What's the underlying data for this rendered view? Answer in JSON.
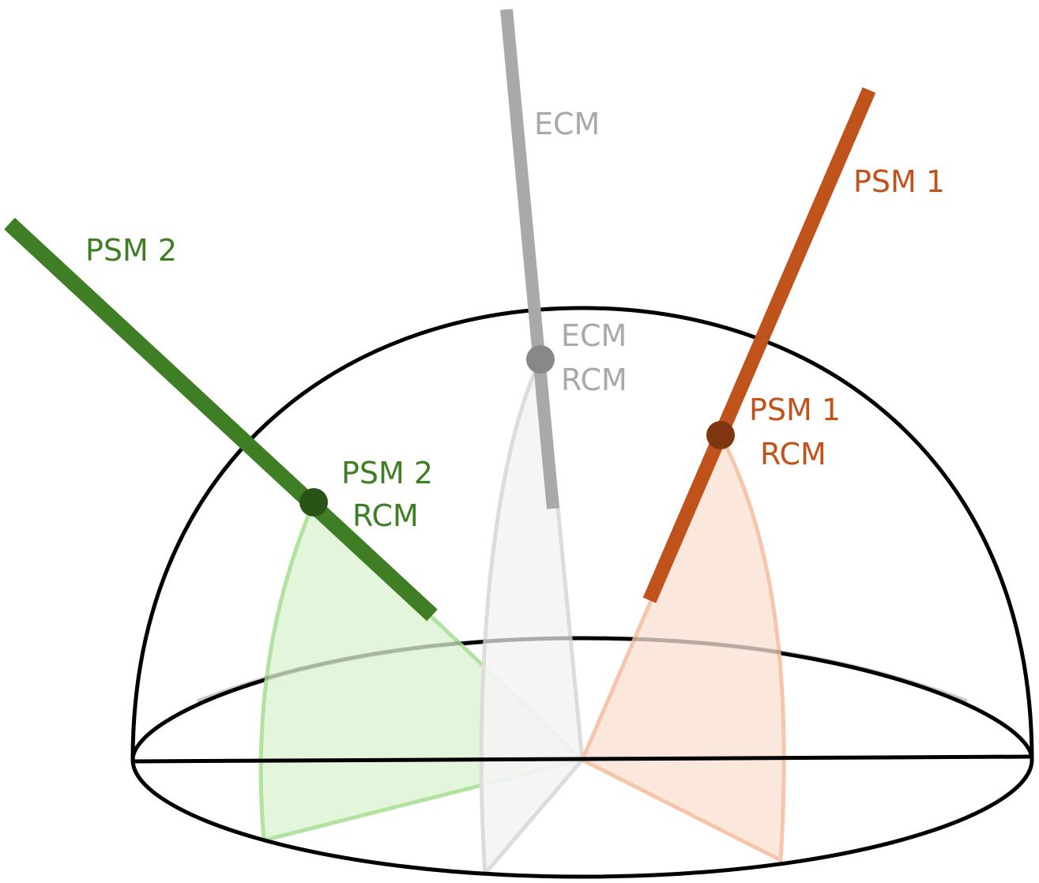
{
  "labels": {
    "ecm": "ECM",
    "ecm_rcm_1": "ECM",
    "ecm_rcm_2": "RCM",
    "psm1": "PSM 1",
    "psm1_rcm_1": "PSM 1",
    "psm1_rcm_2": "RCM",
    "psm2": "PSM 2",
    "psm2_rcm_1": "PSM 2",
    "psm2_rcm_2": "RCM"
  },
  "colors": {
    "ecm": "#a9a9a9",
    "ecm_rcm": "#888888",
    "ecm_fill": "#f4f4f4",
    "ecm_edge": "#dcdcdc",
    "psm1": "#c0531c",
    "psm1_rcm": "#7f3510",
    "psm1_fill": "#fbe6da",
    "psm1_edge": "#f5c6ab",
    "psm2": "#3f7e24",
    "psm2_rcm": "#2a5318",
    "psm2_fill": "#e1f4d8",
    "psm2_edge": "#b2e2a0",
    "hemisphere": "#000000"
  }
}
